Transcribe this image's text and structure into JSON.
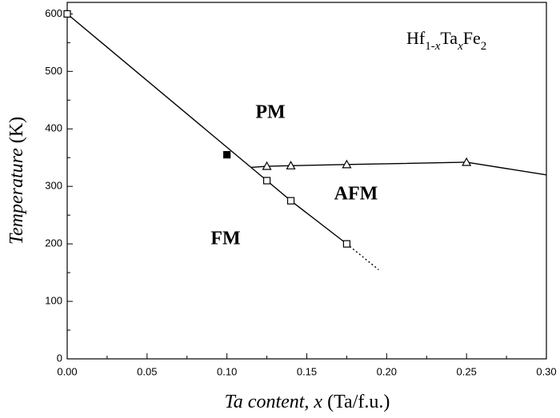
{
  "chart_data": {
    "type": "line",
    "xlabel_parts": [
      {
        "text": "Ta content, x",
        "italic": true
      },
      {
        "text": "(Ta/f.u.)",
        "italic": false
      }
    ],
    "ylabel_parts": [
      {
        "text": "Temperature",
        "italic": true
      },
      {
        "text": "(K)",
        "italic": false
      }
    ],
    "formula": [
      {
        "text": "Hf"
      },
      {
        "text": "1-",
        "sub": true
      },
      {
        "text": "x",
        "sub": true,
        "italic": true
      },
      {
        "text": "Ta"
      },
      {
        "text": "x",
        "sub": true,
        "italic": true
      },
      {
        "text": "Fe"
      },
      {
        "text": "2",
        "sub": true
      }
    ],
    "annotations": [
      {
        "text": "PM"
      },
      {
        "text": "AFM"
      },
      {
        "text": "FM"
      }
    ],
    "xlim": [
      0,
      0.3
    ],
    "ylim": [
      0,
      620
    ],
    "xticks": [
      {
        "value": 0,
        "label": "0.00"
      },
      {
        "value": 0.05,
        "label": "0.05"
      },
      {
        "value": 0.1,
        "label": "0.10"
      },
      {
        "value": 0.15,
        "label": "0.15"
      },
      {
        "value": 0.2,
        "label": "0.20"
      },
      {
        "value": 0.25,
        "label": "0.25"
      },
      {
        "value": 0.3,
        "label": "0.30"
      }
    ],
    "yticks": [
      0,
      100,
      200,
      300,
      400,
      500,
      600
    ],
    "series": [
      {
        "x": [
          0,
          0.125,
          0.14,
          0.175
        ],
        "values": [
          600,
          310,
          275,
          200
        ],
        "color": "#000000",
        "line": "solid",
        "marker": "open-square"
      },
      {
        "x": [
          0.175,
          0.195
        ],
        "values": [
          200,
          155
        ],
        "color": "#000000",
        "line": "dotted",
        "marker": "none"
      },
      {
        "x": [
          0.115,
          0.125,
          0.14,
          0.175,
          0.25,
          0.3
        ],
        "values": [
          333,
          335,
          336,
          338,
          342,
          320
        ],
        "color": "#000000",
        "line": "solid",
        "marker": "none"
      },
      {
        "x": [
          0.125,
          0.14,
          0.175,
          0.25
        ],
        "values": [
          335,
          336,
          338,
          342
        ],
        "color": "#000000",
        "line": "none",
        "marker": "open-triangle"
      },
      {
        "x": [
          0.1
        ],
        "values": [
          355
        ],
        "color": "#000000",
        "line": "none",
        "marker": "filled-square"
      }
    ]
  }
}
